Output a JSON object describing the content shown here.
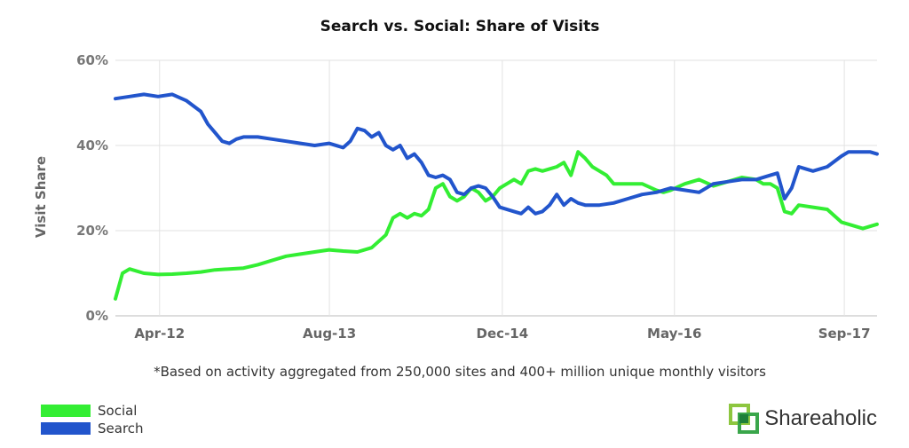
{
  "chart_data": {
    "type": "line",
    "title": "Search vs. Social: Share of Visits",
    "ylabel": "Visit Share",
    "xlabel": "",
    "x_ticks": [
      "Apr-12",
      "Aug-13",
      "Dec-14",
      "May-16",
      "Sep-17"
    ],
    "y_ticks": [
      "0%",
      "20%",
      "40%",
      "60%"
    ],
    "ylim": [
      0,
      60
    ],
    "grid": true,
    "legend_position": "bottom-left",
    "series": [
      {
        "name": "Social",
        "color": "#33ee33",
        "points": [
          [
            0,
            4
          ],
          [
            1,
            10
          ],
          [
            2,
            11
          ],
          [
            4,
            10
          ],
          [
            6,
            9.7
          ],
          [
            8,
            9.8
          ],
          [
            10,
            10
          ],
          [
            12,
            10.3
          ],
          [
            14,
            10.8
          ],
          [
            16,
            11
          ],
          [
            18,
            11.2
          ],
          [
            20,
            12
          ],
          [
            22,
            13
          ],
          [
            24,
            14
          ],
          [
            26,
            14.5
          ],
          [
            28,
            15
          ],
          [
            30,
            15.5
          ],
          [
            32,
            15.2
          ],
          [
            34,
            15
          ],
          [
            36,
            16
          ],
          [
            38,
            19
          ],
          [
            39,
            23
          ],
          [
            40,
            24
          ],
          [
            41,
            23
          ],
          [
            42,
            24
          ],
          [
            43,
            23.5
          ],
          [
            44,
            25
          ],
          [
            45,
            30
          ],
          [
            46,
            31
          ],
          [
            47,
            28
          ],
          [
            48,
            27
          ],
          [
            49,
            28
          ],
          [
            50,
            30
          ],
          [
            51,
            29
          ],
          [
            52,
            27
          ],
          [
            53,
            28
          ],
          [
            54,
            30
          ],
          [
            55,
            31
          ],
          [
            56,
            32
          ],
          [
            57,
            31
          ],
          [
            58,
            34
          ],
          [
            59,
            34.5
          ],
          [
            60,
            34
          ],
          [
            61,
            34.5
          ],
          [
            62,
            35
          ],
          [
            63,
            36
          ],
          [
            64,
            33
          ],
          [
            65,
            38.5
          ],
          [
            66,
            37
          ],
          [
            67,
            35
          ],
          [
            68,
            34
          ],
          [
            69,
            33
          ],
          [
            70,
            31
          ],
          [
            72,
            31
          ],
          [
            74,
            31
          ],
          [
            76,
            29.5
          ],
          [
            77,
            29
          ],
          [
            78,
            29.5
          ],
          [
            80,
            31
          ],
          [
            82,
            32
          ],
          [
            84,
            30.5
          ],
          [
            86,
            31.5
          ],
          [
            88,
            32.5
          ],
          [
            90,
            32
          ],
          [
            91,
            31
          ],
          [
            92,
            31
          ],
          [
            93,
            30
          ],
          [
            94,
            24.5
          ],
          [
            95,
            24
          ],
          [
            96,
            26
          ],
          [
            98,
            25.5
          ],
          [
            100,
            25
          ],
          [
            102,
            22
          ],
          [
            104,
            21
          ],
          [
            105,
            20.5
          ],
          [
            106,
            21
          ],
          [
            107,
            21.5
          ]
        ]
      },
      {
        "name": "Search",
        "color": "#2255cc",
        "points": [
          [
            0,
            51
          ],
          [
            2,
            51.5
          ],
          [
            4,
            52
          ],
          [
            6,
            51.5
          ],
          [
            8,
            52
          ],
          [
            10,
            50.5
          ],
          [
            12,
            48
          ],
          [
            13,
            45
          ],
          [
            14,
            43
          ],
          [
            15,
            41
          ],
          [
            16,
            40.5
          ],
          [
            17,
            41.5
          ],
          [
            18,
            42
          ],
          [
            20,
            42
          ],
          [
            22,
            41.5
          ],
          [
            24,
            41
          ],
          [
            26,
            40.5
          ],
          [
            28,
            40
          ],
          [
            30,
            40.5
          ],
          [
            32,
            39.5
          ],
          [
            33,
            41
          ],
          [
            34,
            44
          ],
          [
            35,
            43.5
          ],
          [
            36,
            42
          ],
          [
            37,
            43
          ],
          [
            38,
            40
          ],
          [
            39,
            39
          ],
          [
            40,
            40
          ],
          [
            41,
            37
          ],
          [
            42,
            38
          ],
          [
            43,
            36
          ],
          [
            44,
            33
          ],
          [
            45,
            32.5
          ],
          [
            46,
            33
          ],
          [
            47,
            32
          ],
          [
            48,
            29
          ],
          [
            49,
            28.5
          ],
          [
            50,
            30
          ],
          [
            51,
            30.5
          ],
          [
            52,
            30
          ],
          [
            53,
            28
          ],
          [
            54,
            25.5
          ],
          [
            56,
            24.5
          ],
          [
            57,
            24
          ],
          [
            58,
            25.5
          ],
          [
            59,
            24
          ],
          [
            60,
            24.5
          ],
          [
            61,
            26
          ],
          [
            62,
            28.5
          ],
          [
            63,
            26
          ],
          [
            64,
            27.5
          ],
          [
            65,
            26.5
          ],
          [
            66,
            26
          ],
          [
            68,
            26
          ],
          [
            70,
            26.5
          ],
          [
            72,
            27.5
          ],
          [
            74,
            28.5
          ],
          [
            76,
            29
          ],
          [
            78,
            30
          ],
          [
            80,
            29.5
          ],
          [
            82,
            29
          ],
          [
            84,
            31
          ],
          [
            86,
            31.5
          ],
          [
            88,
            32
          ],
          [
            90,
            32
          ],
          [
            92,
            33
          ],
          [
            93,
            33.5
          ],
          [
            94,
            27.5
          ],
          [
            95,
            30
          ],
          [
            96,
            35
          ],
          [
            97,
            34.5
          ],
          [
            98,
            34
          ],
          [
            100,
            35
          ],
          [
            102,
            37.5
          ],
          [
            103,
            38.5
          ],
          [
            104,
            38.5
          ],
          [
            105,
            38.5
          ],
          [
            106,
            38.5
          ],
          [
            107,
            38
          ]
        ]
      }
    ]
  },
  "footnote": "*Based on activity aggregated from 250,000 sites and 400+ million unique monthly visitors",
  "legend": {
    "social_label": "Social",
    "search_label": "Search",
    "social_color": "#33ee33",
    "search_color": "#2255cc"
  },
  "brand": {
    "name": "Shareaholic",
    "icon": "shareaholic-logo-icon"
  }
}
